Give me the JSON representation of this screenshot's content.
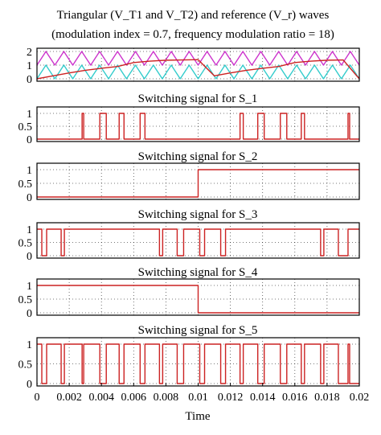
{
  "figure": {
    "title_line1": "Triangular (V_T1 and V_T2) and reference (V_r) waves",
    "title_line2": "(modulation index = 0.7, frequency modulation ratio = 18)",
    "xlabel": "Time"
  },
  "chart_data": [
    {
      "type": "line",
      "title": "Triangular (V_T1 and V_T2) and reference (V_r) waves (modulation index = 0.7, frequency modulation ratio = 18)",
      "xlim": [
        0,
        0.02
      ],
      "ylim": [
        0,
        2
      ],
      "yticks": [
        0,
        1,
        2
      ],
      "grid": true,
      "series": [
        {
          "name": "V_T1",
          "color": "#cc33cc",
          "x": [
            0,
            0.0005556,
            0.0011111,
            0.0016667,
            0.0022222,
            0.0027778,
            0.0033333,
            0.0038889,
            0.0044444,
            0.005,
            0.0055556,
            0.0061111,
            0.0066667,
            0.0072222,
            0.0077778,
            0.0083333,
            0.0088889,
            0.0094444,
            0.01,
            0.0105556,
            0.0111111,
            0.0116667,
            0.0122222,
            0.0127778,
            0.0133333,
            0.0138889,
            0.0144444,
            0.015,
            0.0155556,
            0.0161111,
            0.0166667,
            0.0172222,
            0.0177778,
            0.0183333,
            0.0188889,
            0.0194444,
            0.02
          ],
          "values": [
            1,
            2,
            1,
            2,
            1,
            2,
            1,
            2,
            1,
            2,
            1,
            2,
            1,
            2,
            1,
            2,
            1,
            2,
            1,
            2,
            1,
            2,
            1,
            2,
            1,
            2,
            1,
            2,
            1,
            2,
            1,
            2,
            1,
            2,
            1,
            2,
            1
          ]
        },
        {
          "name": "V_T2",
          "color": "#33cccc",
          "x": [
            0,
            0.0005556,
            0.0011111,
            0.0016667,
            0.0022222,
            0.0027778,
            0.0033333,
            0.0038889,
            0.0044444,
            0.005,
            0.0055556,
            0.0061111,
            0.0066667,
            0.0072222,
            0.0077778,
            0.0083333,
            0.0088889,
            0.0094444,
            0.01,
            0.0105556,
            0.0111111,
            0.0116667,
            0.0122222,
            0.0127778,
            0.0133333,
            0.0138889,
            0.0144444,
            0.015,
            0.0155556,
            0.0161111,
            0.0166667,
            0.0172222,
            0.0177778,
            0.0183333,
            0.0188889,
            0.0194444,
            0.02
          ],
          "values": [
            0,
            1,
            0,
            1,
            0,
            1,
            0,
            1,
            0,
            1,
            0,
            1,
            0,
            1,
            0,
            1,
            0,
            1,
            0,
            1,
            0,
            1,
            0,
            1,
            0,
            1,
            0,
            1,
            0,
            1,
            0,
            1,
            0,
            1,
            0,
            1,
            0
          ]
        },
        {
          "name": "V_r",
          "color": "#cc2222",
          "x": [
            0,
            0.001,
            0.002,
            0.003,
            0.004,
            0.005,
            0.006,
            0.007,
            0.008,
            0.009,
            0.01,
            0.011,
            0.012,
            0.013,
            0.014,
            0.015,
            0.016,
            0.017,
            0.018,
            0.019,
            0.02
          ],
          "values": [
            0,
            0.22,
            0.43,
            0.62,
            0.77,
            0.9,
            1.19,
            1.29,
            1.36,
            1.38,
            1.4,
            0.22,
            0.43,
            0.62,
            0.77,
            0.9,
            1.19,
            1.29,
            1.36,
            1.38,
            0
          ]
        }
      ]
    },
    {
      "type": "line",
      "title": "Switching signal for S_1",
      "xlim": [
        0,
        0.02
      ],
      "ylim": [
        0,
        1
      ],
      "yticks": [
        0,
        0.5,
        1
      ],
      "grid": true,
      "series": [
        {
          "color": "#cc2222",
          "x": [
            0,
            0.0028,
            0.0028,
            0.0029,
            0.0029,
            0.0039,
            0.0039,
            0.0043,
            0.0043,
            0.0051,
            0.0051,
            0.0054,
            0.0054,
            0.0064,
            0.0064,
            0.0067,
            0.0067,
            0.0126,
            0.0126,
            0.0128,
            0.0128,
            0.0137,
            0.0137,
            0.0141,
            0.0141,
            0.0151,
            0.0151,
            0.0155,
            0.0155,
            0.0164,
            0.0164,
            0.0166,
            0.0166,
            0.0193,
            0.0193,
            0.0194,
            0.0194,
            0.02
          ],
          "values": [
            0,
            0,
            1,
            1,
            0,
            0,
            1,
            1,
            0,
            0,
            1,
            1,
            0,
            0,
            1,
            1,
            0,
            0,
            1,
            1,
            0,
            0,
            1,
            1,
            0,
            0,
            1,
            1,
            0,
            0,
            1,
            1,
            0,
            0,
            1,
            1,
            0,
            0
          ]
        }
      ]
    },
    {
      "type": "line",
      "title": "Switching signal for S_2",
      "xlim": [
        0,
        0.02
      ],
      "ylim": [
        0,
        1
      ],
      "yticks": [
        0,
        0.5,
        1
      ],
      "grid": true,
      "series": [
        {
          "color": "#cc2222",
          "x": [
            0,
            0.01,
            0.01,
            0.02
          ],
          "values": [
            0,
            0,
            1,
            1
          ]
        }
      ]
    },
    {
      "type": "line",
      "title": "Switching signal for S_3",
      "xlim": [
        0,
        0.02
      ],
      "ylim": [
        0,
        1
      ],
      "yticks": [
        0,
        0.5,
        1
      ],
      "grid": true,
      "series": [
        {
          "color": "#cc2222",
          "x": [
            0,
            0.0003,
            0.0003,
            0.0006,
            0.0006,
            0.0015,
            0.0015,
            0.0017,
            0.0017,
            0.0076,
            0.0076,
            0.0078,
            0.0078,
            0.0087,
            0.0087,
            0.0091,
            0.0091,
            0.0101,
            0.0101,
            0.0104,
            0.0104,
            0.0114,
            0.0114,
            0.0117,
            0.0117,
            0.0176,
            0.0176,
            0.0178,
            0.0178,
            0.0187,
            0.0187,
            0.0193,
            0.0193,
            0.02
          ],
          "values": [
            1,
            1,
            0,
            0,
            1,
            1,
            0,
            0,
            1,
            1,
            0,
            0,
            1,
            1,
            0,
            0,
            1,
            1,
            0,
            0,
            1,
            1,
            0,
            0,
            1,
            1,
            0,
            0,
            1,
            1,
            0,
            0,
            1,
            1
          ]
        }
      ]
    },
    {
      "type": "line",
      "title": "Switching signal for S_4",
      "xlim": [
        0,
        0.02
      ],
      "ylim": [
        0,
        1
      ],
      "yticks": [
        0,
        0.5,
        1
      ],
      "grid": true,
      "series": [
        {
          "color": "#cc2222",
          "x": [
            0,
            0.01,
            0.01,
            0.02
          ],
          "values": [
            1,
            1,
            0,
            0
          ]
        }
      ]
    },
    {
      "type": "line",
      "title": "Switching signal for S_5",
      "xlim": [
        0,
        0.02
      ],
      "ylim": [
        0,
        1
      ],
      "yticks": [
        0,
        0.5,
        1
      ],
      "grid": true,
      "xticks": [
        0,
        0.002,
        0.004,
        0.006,
        0.008,
        0.01,
        0.012,
        0.014,
        0.016,
        0.018,
        0.02
      ],
      "series": [
        {
          "color": "#cc2222",
          "x": [
            0,
            0.0003,
            0.0003,
            0.0006,
            0.0006,
            0.0015,
            0.0015,
            0.0017,
            0.0017,
            0.0028,
            0.0028,
            0.0029,
            0.0029,
            0.0039,
            0.0039,
            0.0043,
            0.0043,
            0.0051,
            0.0051,
            0.0054,
            0.0054,
            0.0064,
            0.0064,
            0.0067,
            0.0067,
            0.0076,
            0.0076,
            0.0078,
            0.0078,
            0.0087,
            0.0087,
            0.0091,
            0.0091,
            0.0101,
            0.0101,
            0.0104,
            0.0104,
            0.0114,
            0.0114,
            0.0117,
            0.0117,
            0.0126,
            0.0126,
            0.0128,
            0.0128,
            0.0137,
            0.0137,
            0.0141,
            0.0141,
            0.0151,
            0.0151,
            0.0155,
            0.0155,
            0.0164,
            0.0164,
            0.0166,
            0.0166,
            0.0176,
            0.0176,
            0.0178,
            0.0178,
            0.0187,
            0.0187,
            0.0193,
            0.0193,
            0.0194,
            0.0194,
            0.02
          ],
          "values": [
            1,
            1,
            0,
            0,
            1,
            1,
            0,
            0,
            1,
            1,
            0,
            0,
            1,
            1,
            0,
            0,
            1,
            1,
            0,
            0,
            1,
            1,
            0,
            0,
            1,
            1,
            0,
            0,
            1,
            1,
            0,
            0,
            1,
            1,
            0,
            0,
            1,
            1,
            0,
            0,
            1,
            1,
            0,
            0,
            1,
            1,
            0,
            0,
            1,
            1,
            0,
            0,
            1,
            1,
            0,
            0,
            1,
            1,
            0,
            0,
            1,
            1,
            0,
            0,
            1,
            1,
            0,
            0
          ]
        }
      ]
    }
  ]
}
